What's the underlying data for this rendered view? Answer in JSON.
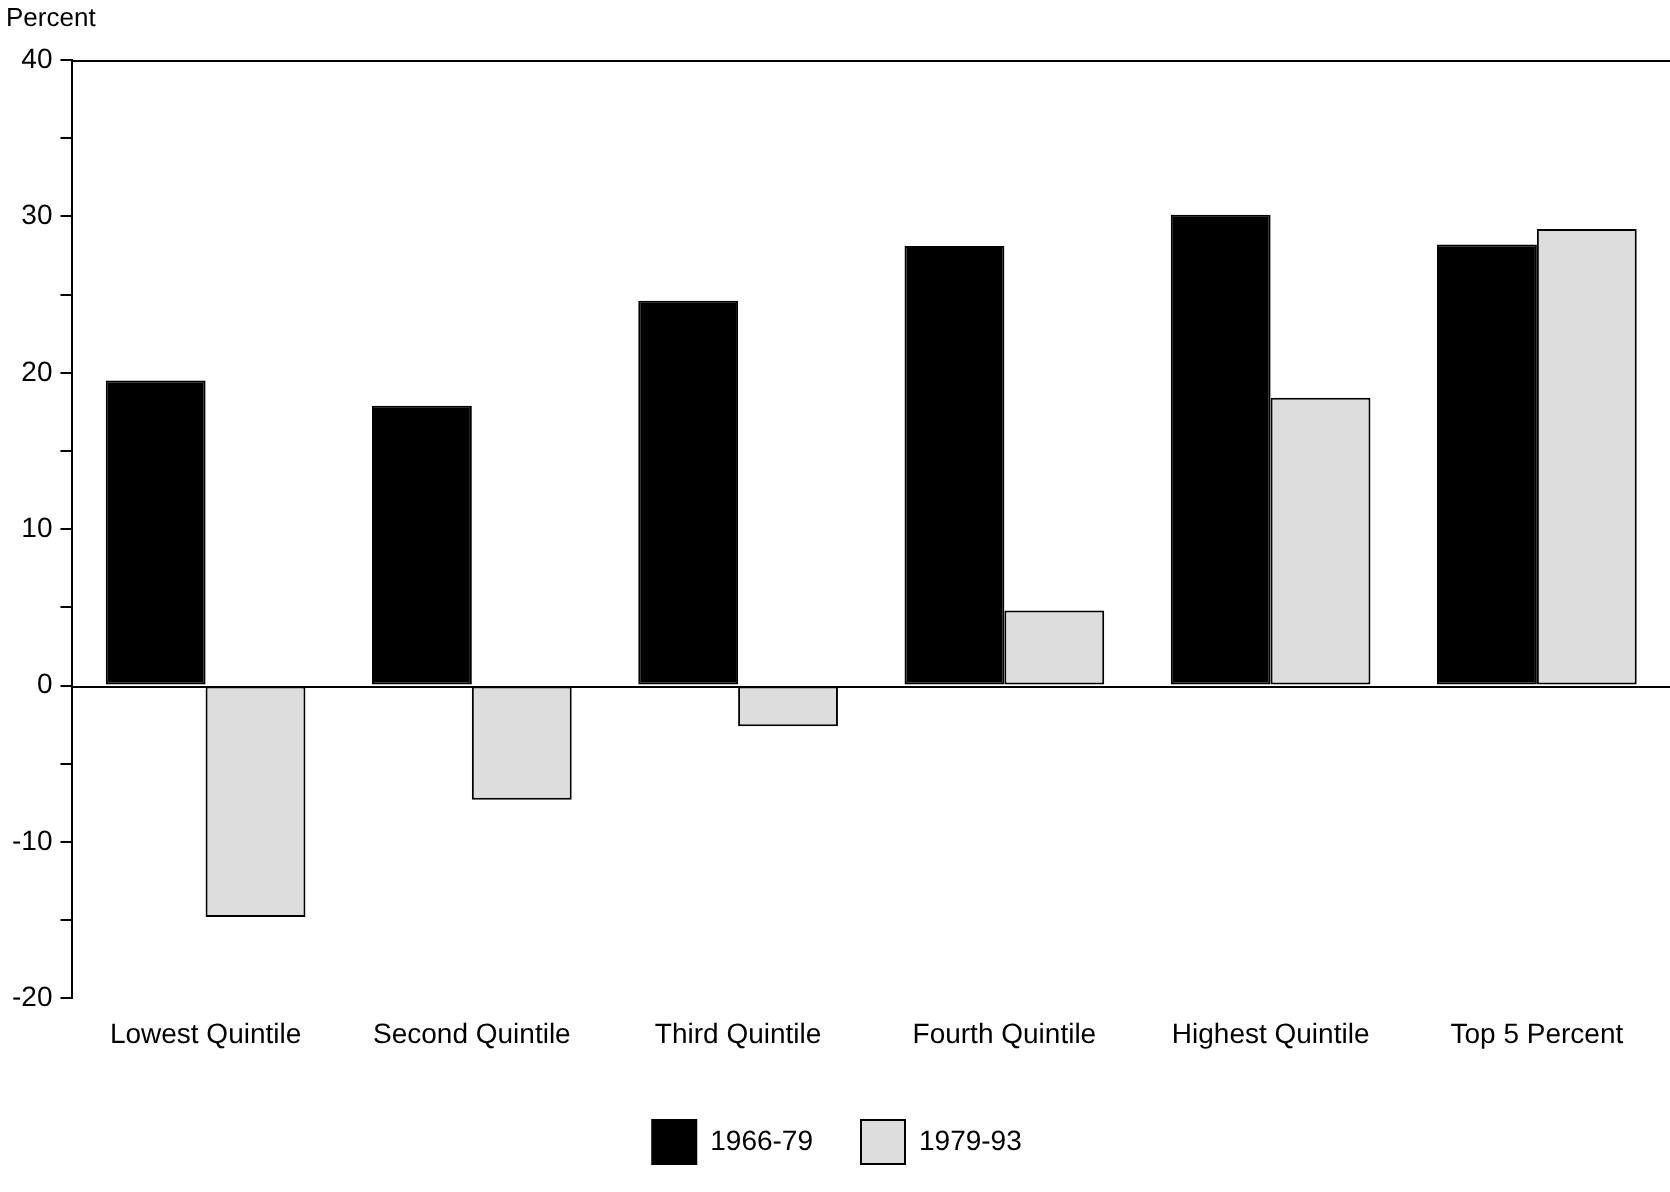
{
  "chart_data": {
    "type": "bar",
    "ylabel": "Percent",
    "categories": [
      "Lowest Quintile",
      "Second Quintile",
      "Third Quintile",
      "Fourth Quintile",
      "Highest Quintile",
      "Top 5 Percent"
    ],
    "series": [
      {
        "name": "1966-79",
        "color": "#000000",
        "values": [
          19.5,
          17.9,
          24.6,
          28.1,
          30.1,
          28.2
        ]
      },
      {
        "name": "1979-93",
        "color": "#dddddd",
        "values": [
          -14.8,
          -7.3,
          -2.6,
          4.8,
          18.4,
          29.2
        ]
      }
    ],
    "ylim": [
      -20,
      40
    ],
    "yticks": [
      -20,
      {
        "value": -15,
        "label": null
      },
      -10,
      {
        "value": -5,
        "label": null
      },
      0,
      {
        "value": 5,
        "label": null
      },
      10,
      {
        "value": 15,
        "label": null
      },
      20,
      {
        "value": 25,
        "label": null
      },
      30,
      {
        "value": 35,
        "label": null
      },
      40
    ],
    "ref_lines": [
      {
        "axis": "y",
        "value": 0,
        "color": "#000000"
      }
    ],
    "grid": false,
    "legend": "bottom"
  }
}
